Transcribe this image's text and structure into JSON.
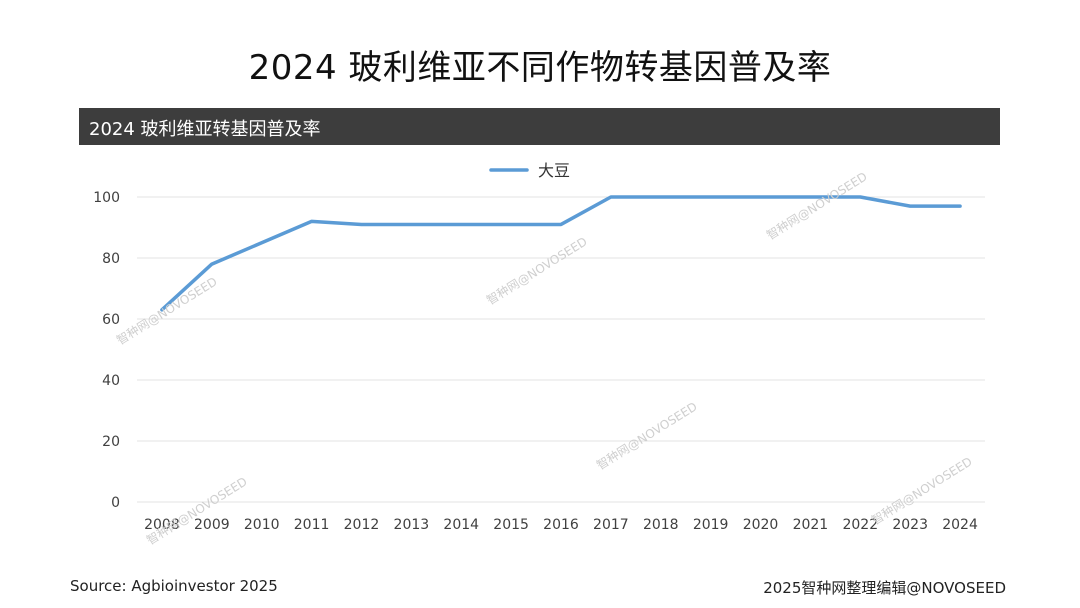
{
  "page_title": "2024 玻利维亚不同作物转基因普及率",
  "chart_data": {
    "type": "line",
    "title": "2024 玻利维亚转基因普及率",
    "xlabel": "",
    "ylabel": "",
    "categories": [
      "2008",
      "2009",
      "2010",
      "2011",
      "2012",
      "2013",
      "2014",
      "2015",
      "2016",
      "2017",
      "2018",
      "2019",
      "2020",
      "2021",
      "2022",
      "2023",
      "2024"
    ],
    "series": [
      {
        "name": "大豆",
        "color": "#5b9bd5",
        "values": [
          63,
          78,
          85,
          92,
          91,
          91,
          91,
          91,
          91,
          100,
          100,
          100,
          100,
          100,
          100,
          97,
          97
        ]
      }
    ],
    "ylim": [
      0,
      100
    ],
    "yticks": [
      0,
      20,
      40,
      60,
      80,
      100
    ],
    "grid": true,
    "legend_position": "top-center"
  },
  "watermark_text": "智种网@NOVOSEED",
  "footer": {
    "source": "Source: Agbioinvestor 2025",
    "credit": "2025智种网整理编辑@NOVOSEED"
  }
}
